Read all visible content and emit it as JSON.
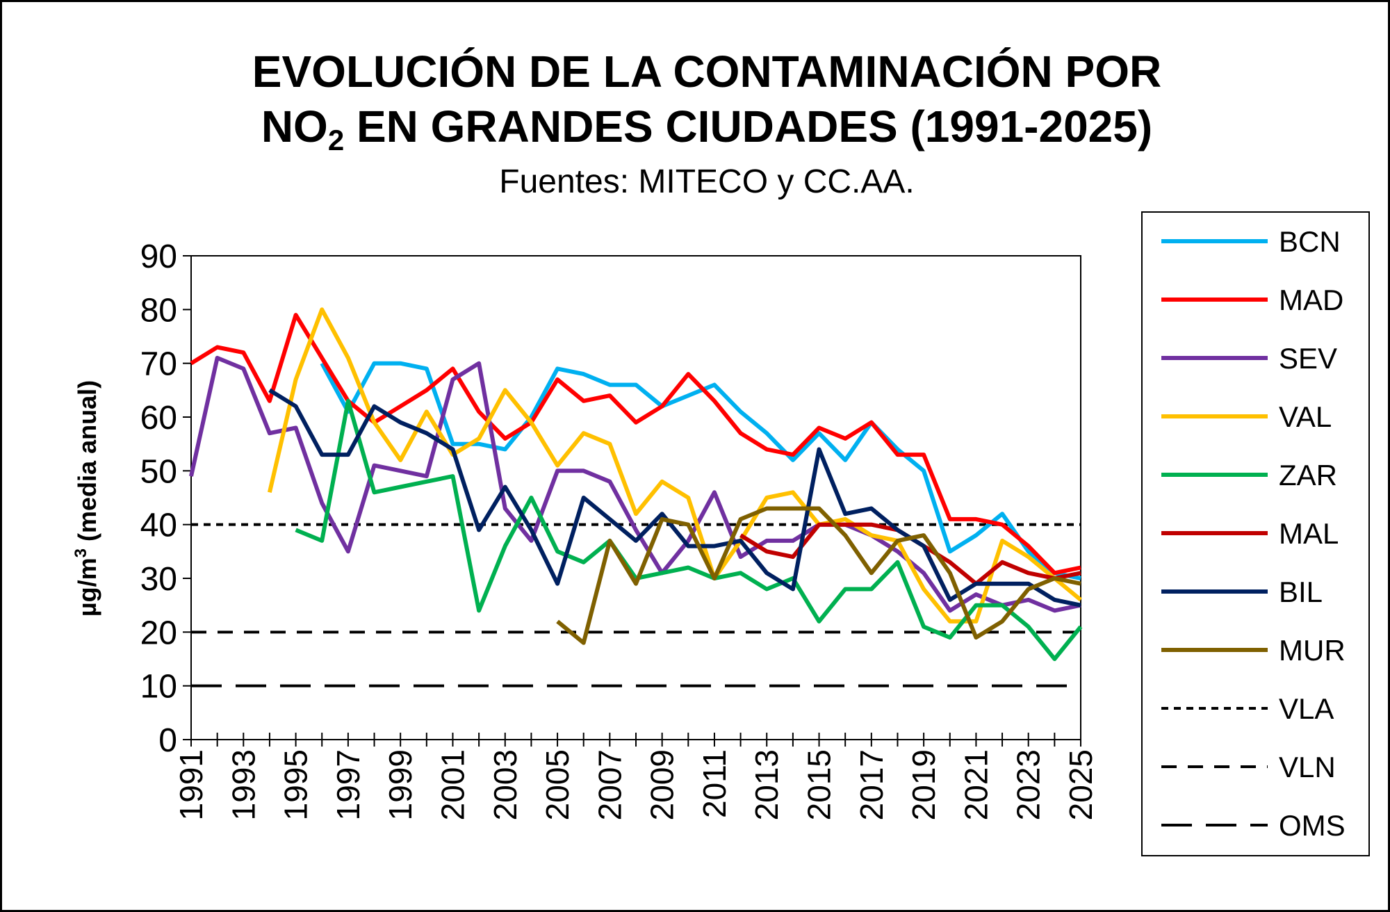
{
  "chart_data": {
    "type": "line",
    "title_line1": "EVOLUCIÓN DE LA CONTAMINACIÓN POR",
    "title_line2_prefix": "NO",
    "title_line2_sub": "2",
    "title_line2_suffix": " EN GRANDES CIUDADES (1991-2025)",
    "subtitle": "Fuentes: MITECO y CC.AA.",
    "ylabel_prefix": "µg/m",
    "ylabel_sup": "3",
    "ylabel_suffix": " (media anual)",
    "xlabel": "",
    "ylim": [
      0,
      90
    ],
    "yticks": [
      0,
      10,
      20,
      30,
      40,
      50,
      60,
      70,
      80,
      90
    ],
    "xlim": [
      1991,
      2025
    ],
    "xtick_labels": [
      "1991",
      "1993",
      "1995",
      "1997",
      "1999",
      "2001",
      "2003",
      "2005",
      "2007",
      "2009",
      "2011",
      "2013",
      "2015",
      "2017",
      "2019",
      "2021",
      "2023",
      "2025"
    ],
    "grid": false,
    "legend_position": "right",
    "x": [
      1991,
      1992,
      1993,
      1994,
      1995,
      1996,
      1997,
      1998,
      1999,
      2000,
      2001,
      2002,
      2003,
      2004,
      2005,
      2006,
      2007,
      2008,
      2009,
      2010,
      2011,
      2012,
      2013,
      2014,
      2015,
      2016,
      2017,
      2018,
      2019,
      2020,
      2021,
      2022,
      2023,
      2024,
      2025
    ],
    "series": [
      {
        "name": "BCN",
        "color": "#00B0F0",
        "values": [
          null,
          null,
          null,
          null,
          null,
          70,
          61,
          70,
          70,
          69,
          55,
          55,
          54,
          60,
          69,
          68,
          66,
          66,
          62,
          64,
          66,
          61,
          57,
          52,
          57,
          52,
          59,
          54,
          50,
          35,
          38,
          42,
          35,
          31,
          30
        ]
      },
      {
        "name": "MAD",
        "color": "#FF0000",
        "values": [
          70,
          73,
          72,
          63,
          79,
          71,
          63,
          59,
          62,
          65,
          69,
          61,
          56,
          59,
          67,
          63,
          64,
          59,
          62,
          68,
          63,
          57,
          54,
          53,
          58,
          56,
          59,
          53,
          53,
          41,
          41,
          40,
          36,
          31,
          32
        ]
      },
      {
        "name": "SEV",
        "color": "#7030A0",
        "values": [
          49,
          71,
          69,
          57,
          58,
          44,
          35,
          51,
          50,
          49,
          67,
          70,
          43,
          37,
          50,
          50,
          48,
          39,
          31,
          37,
          46,
          34,
          37,
          37,
          40,
          40,
          38,
          35,
          31,
          24,
          27,
          25,
          26,
          24,
          25
        ]
      },
      {
        "name": "VAL",
        "color": "#FFC000",
        "values": [
          null,
          null,
          null,
          46,
          67,
          80,
          71,
          59,
          52,
          61,
          53,
          56,
          65,
          59,
          51,
          57,
          55,
          42,
          48,
          45,
          30,
          37,
          45,
          46,
          40,
          41,
          38,
          37,
          28,
          22,
          22,
          37,
          34,
          30,
          26
        ]
      },
      {
        "name": "ZAR",
        "color": "#00B050",
        "values": [
          null,
          null,
          null,
          null,
          39,
          37,
          63,
          46,
          47,
          48,
          49,
          24,
          36,
          45,
          35,
          33,
          37,
          30,
          31,
          32,
          30,
          31,
          28,
          30,
          22,
          28,
          28,
          33,
          21,
          19,
          25,
          25,
          21,
          15,
          21
        ]
      },
      {
        "name": "MAL",
        "color": "#C00000",
        "values": [
          null,
          null,
          null,
          null,
          null,
          null,
          null,
          null,
          null,
          null,
          null,
          null,
          null,
          null,
          null,
          null,
          null,
          null,
          null,
          null,
          null,
          38,
          35,
          34,
          40,
          40,
          40,
          39,
          36,
          33,
          29,
          33,
          31,
          30,
          31
        ]
      },
      {
        "name": "BIL",
        "color": "#002060",
        "values": [
          null,
          null,
          null,
          65,
          62,
          53,
          53,
          62,
          59,
          57,
          54,
          39,
          47,
          39,
          29,
          45,
          41,
          37,
          42,
          36,
          36,
          37,
          31,
          28,
          54,
          42,
          43,
          39,
          36,
          26,
          29,
          29,
          29,
          26,
          25
        ]
      },
      {
        "name": "MUR",
        "color": "#7F6000",
        "values": [
          null,
          null,
          null,
          null,
          null,
          null,
          null,
          null,
          null,
          null,
          null,
          null,
          null,
          null,
          22,
          18,
          37,
          29,
          41,
          40,
          30,
          41,
          43,
          43,
          43,
          38,
          31,
          37,
          38,
          31,
          19,
          22,
          28,
          30,
          29
        ]
      }
    ],
    "reference_lines": [
      {
        "name": "VLA",
        "value": 40,
        "dash": "short"
      },
      {
        "name": "VLN",
        "value": 20,
        "dash": "medium"
      },
      {
        "name": "OMS",
        "value": 10,
        "dash": "long"
      }
    ]
  }
}
